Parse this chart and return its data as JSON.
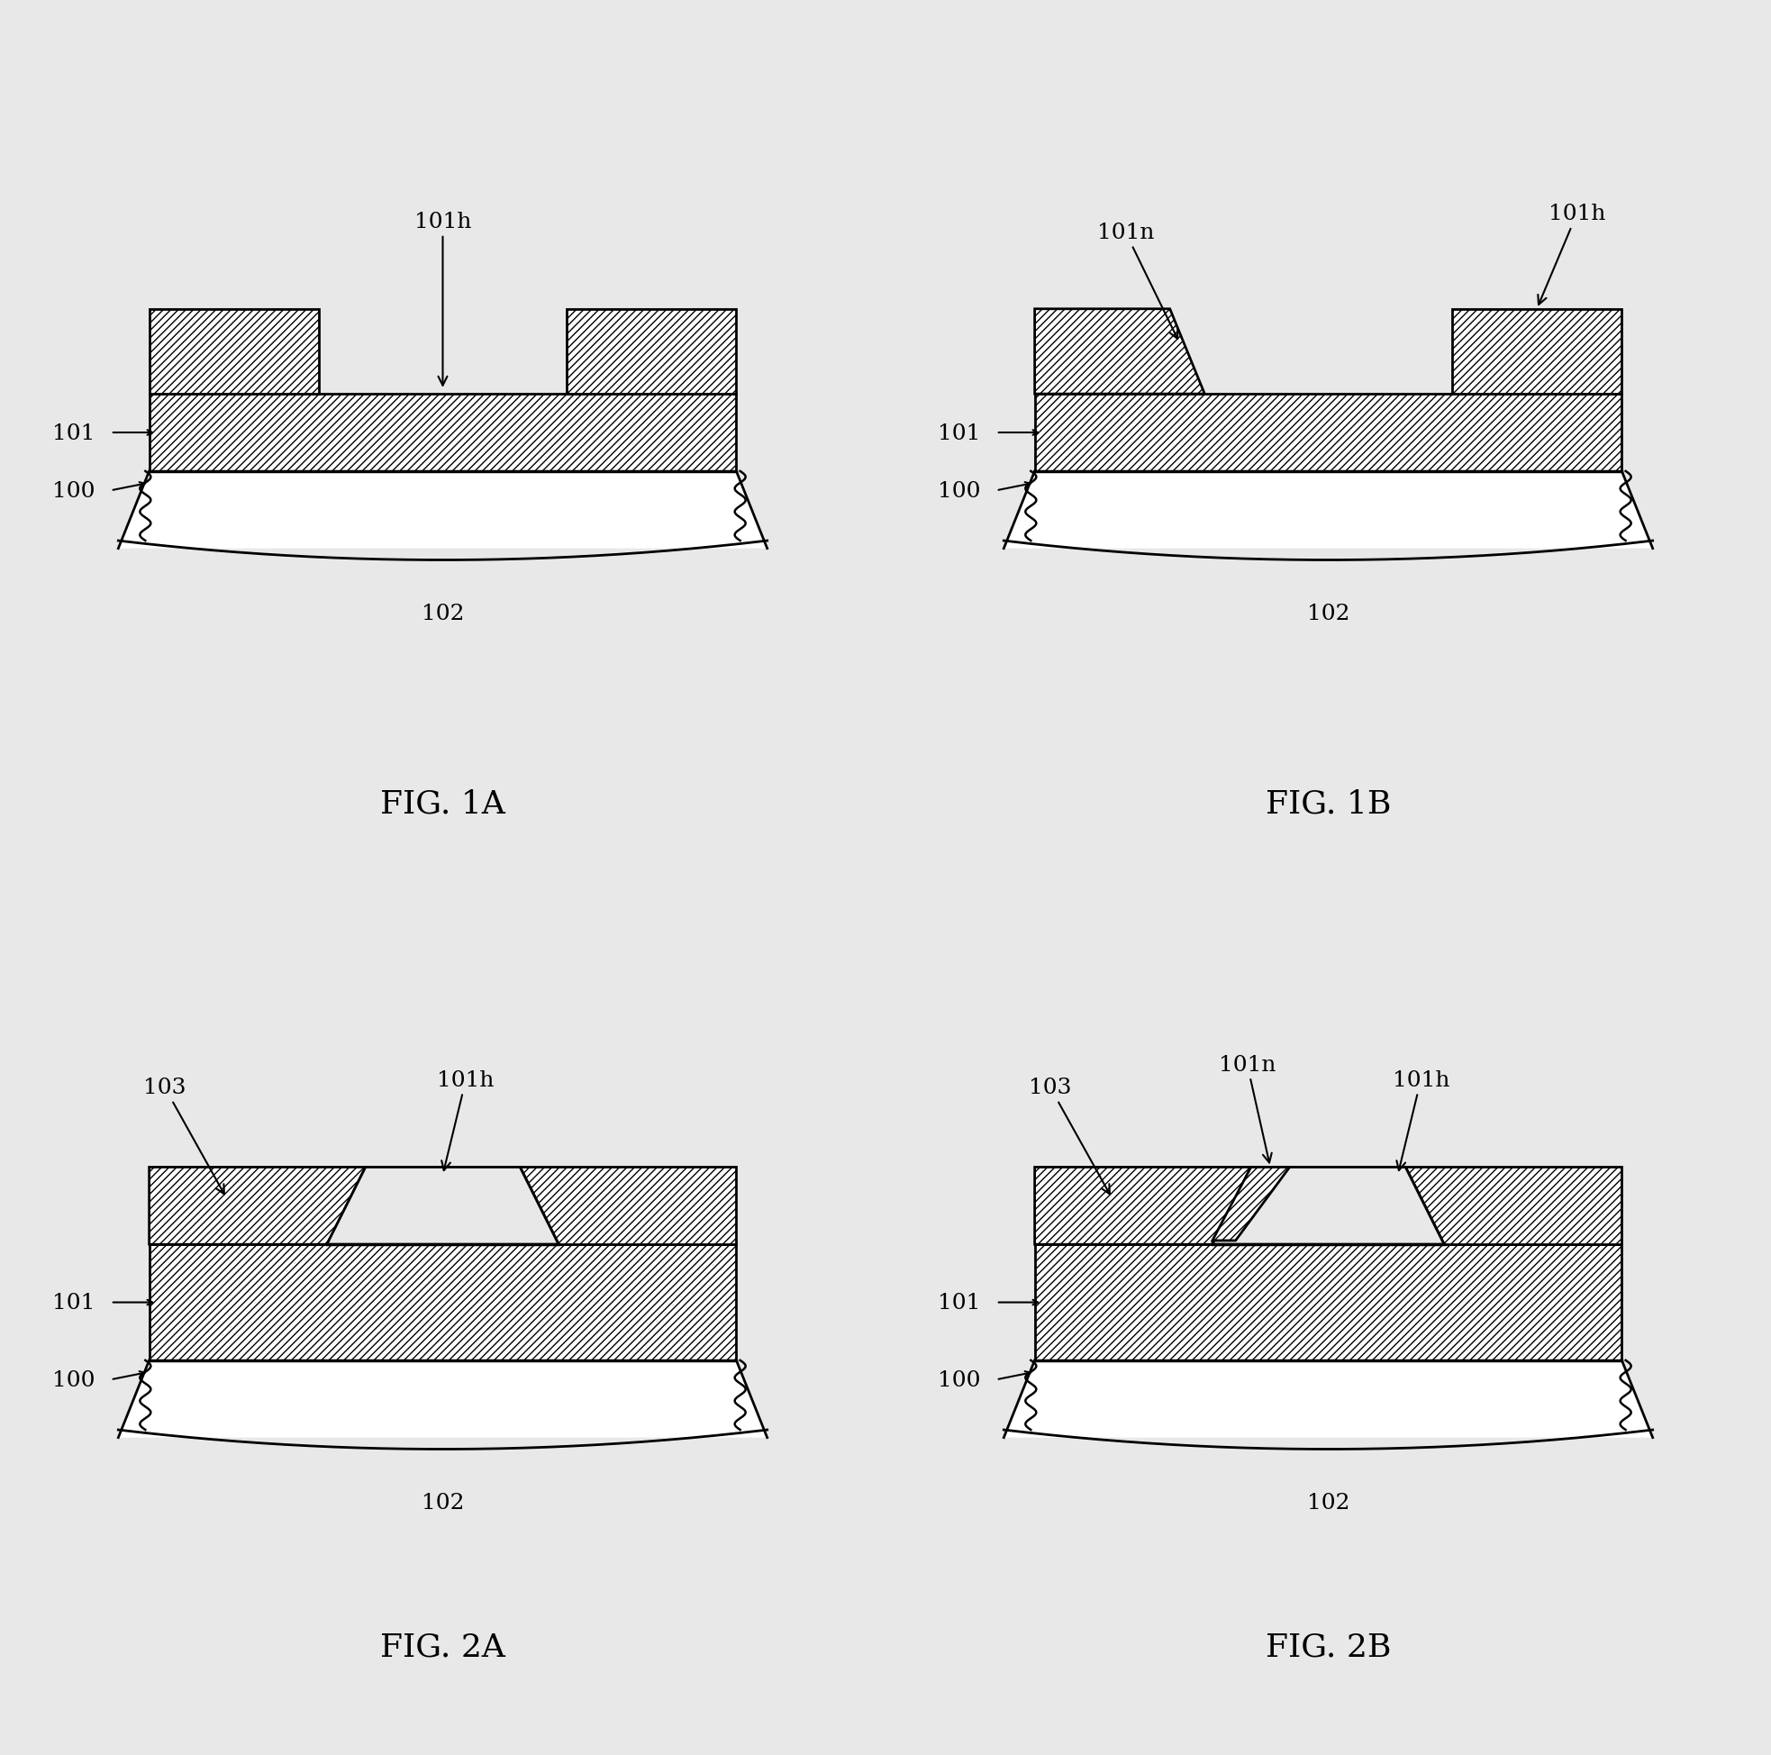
{
  "bg_color": "#e8e8e8",
  "line_color": "#000000",
  "hatch": "////",
  "fig_labels": [
    "FIG. 1A",
    "FIG. 1B",
    "FIG. 2A",
    "FIG. 2B"
  ],
  "font_size_label": 26,
  "font_size_annot": 18
}
